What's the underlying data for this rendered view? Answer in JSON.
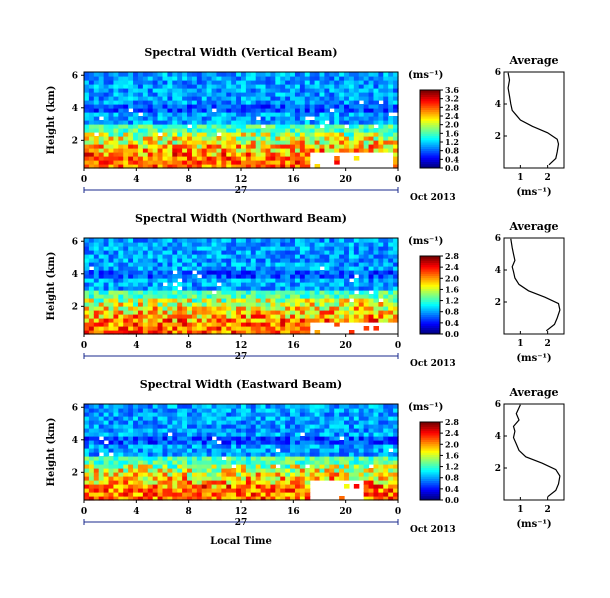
{
  "chart_data": [
    {
      "type": "heatmap",
      "title": "Spectral Width (Vertical Beam)",
      "ylabel": "Height (km)",
      "x_ticks": [
        "0",
        "4",
        "8",
        "12",
        "16",
        "20",
        "0"
      ],
      "y_ticks": [
        "2",
        "4",
        "6"
      ],
      "xlim": [
        0,
        24
      ],
      "ylim": [
        0.3,
        6.2
      ],
      "day_label": "27",
      "date_label": "Oct 2013",
      "colorbar": {
        "unit": "(ms⁻¹)",
        "ticks": [
          "3.6",
          "3.2",
          "2.8",
          "2.4",
          "2.0",
          "1.6",
          "1.2",
          "0.8",
          "0.4",
          "0.0"
        ],
        "range": [
          0.0,
          3.6
        ]
      },
      "average_profile": {
        "title": "Average",
        "xlabel": "(ms⁻¹)",
        "x_ticks": [
          "1",
          "2"
        ],
        "y_ticks": [
          "2",
          "4",
          "6"
        ],
        "xlim": [
          0.4,
          2.6
        ],
        "ylim": [
          0,
          6
        ],
        "values": [
          [
            2.05,
            0.2
          ],
          [
            2.3,
            0.6
          ],
          [
            2.35,
            1.0
          ],
          [
            2.4,
            1.5
          ],
          [
            2.35,
            1.8
          ],
          [
            2.0,
            2.2
          ],
          [
            1.45,
            2.6
          ],
          [
            1.0,
            3.0
          ],
          [
            0.85,
            3.3
          ],
          [
            0.7,
            3.6
          ],
          [
            0.65,
            4.0
          ],
          [
            0.6,
            4.5
          ],
          [
            0.55,
            5.0
          ],
          [
            0.6,
            5.5
          ],
          [
            0.55,
            5.95
          ]
        ]
      },
      "blank_region_time_height": [
        [
          17.2,
          23.5,
          0.3,
          1.2
        ]
      ]
    },
    {
      "type": "heatmap",
      "title": "Spectral Width (Northward Beam)",
      "ylabel": "Height (km)",
      "x_ticks": [
        "0",
        "4",
        "8",
        "12",
        "16",
        "20",
        "0"
      ],
      "y_ticks": [
        "2",
        "4",
        "6"
      ],
      "xlim": [
        0,
        24
      ],
      "ylim": [
        0.3,
        6.2
      ],
      "day_label": "27",
      "date_label": "Oct 2013",
      "colorbar": {
        "unit": "(ms⁻¹)",
        "ticks": [
          "2.8",
          "2.4",
          "2.0",
          "1.6",
          "1.2",
          "0.8",
          "0.4",
          "0.0"
        ],
        "range": [
          0.0,
          2.8
        ]
      },
      "average_profile": {
        "title": "Average",
        "xlabel": "(ms⁻¹)",
        "x_ticks": [
          "1",
          "2"
        ],
        "y_ticks": [
          "2",
          "4",
          "6"
        ],
        "xlim": [
          0.4,
          2.6
        ],
        "ylim": [
          0,
          6
        ],
        "values": [
          [
            1.95,
            0.2
          ],
          [
            2.25,
            0.6
          ],
          [
            2.35,
            1.0
          ],
          [
            2.45,
            1.5
          ],
          [
            2.4,
            1.9
          ],
          [
            1.9,
            2.3
          ],
          [
            1.3,
            2.7
          ],
          [
            0.95,
            3.1
          ],
          [
            0.8,
            3.5
          ],
          [
            0.75,
            3.9
          ],
          [
            0.7,
            4.2
          ],
          [
            0.8,
            4.6
          ],
          [
            0.75,
            5.0
          ],
          [
            0.7,
            5.4
          ],
          [
            0.65,
            5.95
          ]
        ]
      },
      "blank_region_time_height": [
        [
          17.2,
          24,
          0.3,
          1.0
        ]
      ]
    },
    {
      "type": "heatmap",
      "title": "Spectral Width (Eastward Beam)",
      "ylabel": "Height (km)",
      "xlabel": "Local Time",
      "x_ticks": [
        "0",
        "4",
        "8",
        "12",
        "16",
        "20",
        "0"
      ],
      "y_ticks": [
        "2",
        "4",
        "6"
      ],
      "xlim": [
        0,
        24
      ],
      "ylim": [
        0.3,
        6.2
      ],
      "day_label": "27",
      "date_label": "Oct 2013",
      "colorbar": {
        "unit": "(ms⁻¹)",
        "ticks": [
          "2.8",
          "2.4",
          "2.0",
          "1.6",
          "1.2",
          "0.8",
          "0.4",
          "0.0"
        ],
        "range": [
          0.0,
          2.8
        ]
      },
      "average_profile": {
        "title": "Average",
        "xlabel": "(ms⁻¹)",
        "x_ticks": [
          "1",
          "2"
        ],
        "y_ticks": [
          "2",
          "4",
          "6"
        ],
        "xlim": [
          0.4,
          2.6
        ],
        "ylim": [
          0,
          6
        ],
        "values": [
          [
            2.0,
            0.2
          ],
          [
            2.3,
            0.6
          ],
          [
            2.4,
            1.0
          ],
          [
            2.45,
            1.5
          ],
          [
            2.3,
            1.9
          ],
          [
            1.8,
            2.3
          ],
          [
            1.2,
            2.7
          ],
          [
            0.95,
            3.1
          ],
          [
            0.85,
            3.5
          ],
          [
            0.75,
            3.9
          ],
          [
            0.8,
            4.3
          ],
          [
            0.75,
            4.6
          ],
          [
            0.95,
            5.0
          ],
          [
            0.85,
            5.4
          ],
          [
            1.0,
            5.95
          ]
        ]
      },
      "blank_region_time_height": [
        [
          17.2,
          21.5,
          0.3,
          1.5
        ]
      ]
    }
  ]
}
